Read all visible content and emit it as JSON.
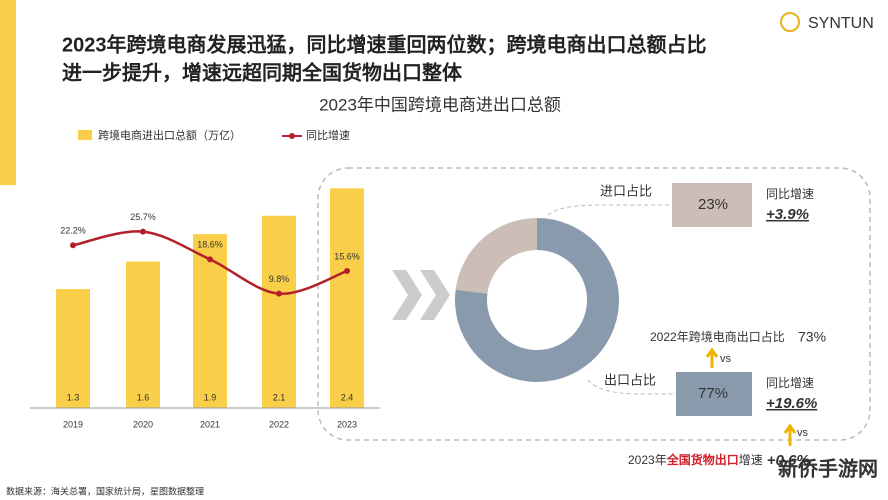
{
  "header": {
    "title_line1": "2023年跨境电商发展迅猛，同比增速重回两位数；跨境电商出口总额占比",
    "title_line2": "进一步提升，增速远超同期全国货物出口整体",
    "logo": "SYNTUN"
  },
  "chart_data": [
    {
      "type": "bar-line",
      "title": "2023年中国跨境电商进出口总额",
      "categories": [
        "2019",
        "2020",
        "2021",
        "2022",
        "2023"
      ],
      "series": [
        {
          "name": "跨境电商进出口总额（万亿）",
          "color": "#f9cf4a",
          "values": [
            1.3,
            1.6,
            1.9,
            2.1,
            2.4
          ]
        },
        {
          "name": "同比增速",
          "color": "#b3202c",
          "axis": "y2",
          "values": [
            22.2,
            25.7,
            18.6,
            9.8,
            15.6
          ],
          "value_labels": [
            "22.2%",
            "25.7%",
            "18.6%",
            "9.8%",
            "15.6%"
          ]
        }
      ],
      "ylim": [
        0,
        2.6
      ],
      "y2lim": [
        -19.5,
        41.5
      ]
    },
    {
      "type": "pie",
      "categories": [
        "进口占比",
        "出口占比"
      ],
      "values": [
        23,
        77
      ],
      "value_labels": [
        "23%",
        "77%"
      ],
      "colors": [
        "#cdbdb7",
        "#8a9aad"
      ],
      "growth_title": "同比增速",
      "growth_values": [
        3.9,
        19.6
      ],
      "growth_labels": [
        "+3.9%",
        "+19.6%"
      ]
    }
  ],
  "annotations": {
    "share_2022_text": "2022年跨境电商出口占比",
    "share_2022": 73,
    "share_2022_label": "73%",
    "vs": "vs",
    "national_prefix": "2023年",
    "national_highlight": "全国货物出口",
    "national_suffix": "增速",
    "national_growth": 0.6,
    "national_growth_label": "+0.6%"
  },
  "footer": {
    "source": "数据来源：海关总署，国家统计局，星图数据整理",
    "watermark": "新侨手游网"
  }
}
